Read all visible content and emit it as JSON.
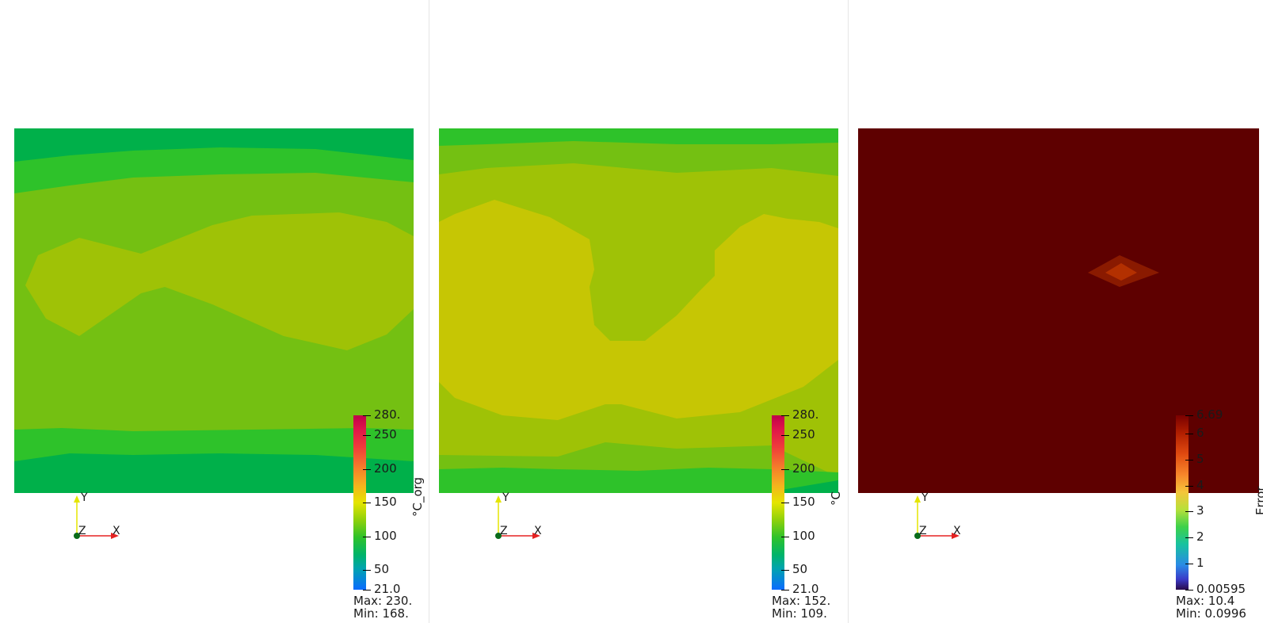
{
  "views": [
    {
      "name": "view-original",
      "colorbar": {
        "title": "°C_org",
        "ticks": [
          "280.",
          "250",
          "200",
          "150",
          "100",
          "50",
          "21.0"
        ],
        "tick_values": [
          280,
          250,
          200,
          150,
          100,
          50,
          21
        ],
        "range": [
          21,
          280
        ],
        "colormap": "jet-like"
      },
      "stats": {
        "max": "Max: 230.",
        "min": "Min: 168."
      }
    },
    {
      "name": "view-predicted",
      "colorbar": {
        "title": "°C",
        "ticks": [
          "280.",
          "250",
          "200",
          "150",
          "100",
          "50",
          "21.0"
        ],
        "tick_values": [
          280,
          250,
          200,
          150,
          100,
          50,
          21
        ],
        "range": [
          21,
          280
        ],
        "colormap": "jet-like"
      },
      "stats": {
        "max": "Max: 152.",
        "min": "Min: 109."
      }
    },
    {
      "name": "view-error",
      "colorbar": {
        "title": "Error",
        "ticks": [
          "6.69",
          "6",
          "5",
          "4",
          "3",
          "2",
          "1",
          "0.00595"
        ],
        "tick_values": [
          6.69,
          6,
          5,
          4,
          3,
          2,
          1,
          0.00595
        ],
        "range": [
          0.00595,
          6.69
        ],
        "colormap": "turbo-like"
      },
      "stats": {
        "max": "Max: 10.4",
        "min": "Min: 0.0996"
      }
    }
  ],
  "axes_triad": {
    "x": "X",
    "y": "Y",
    "z": "Z"
  },
  "colors": {
    "band_dark_green": "#00b04a",
    "band_green": "#2ec22a",
    "band_lime": "#74c012",
    "band_yellow_green": "#9fc206",
    "band_yellow": "#c6c604",
    "error_bg": "#5e0000",
    "error_spot_outer": "#8a1a00",
    "error_spot_inner": "#b33000",
    "axis_x": "#e52222",
    "axis_y": "#e5e500",
    "axis_origin": "#0a6b1a"
  }
}
